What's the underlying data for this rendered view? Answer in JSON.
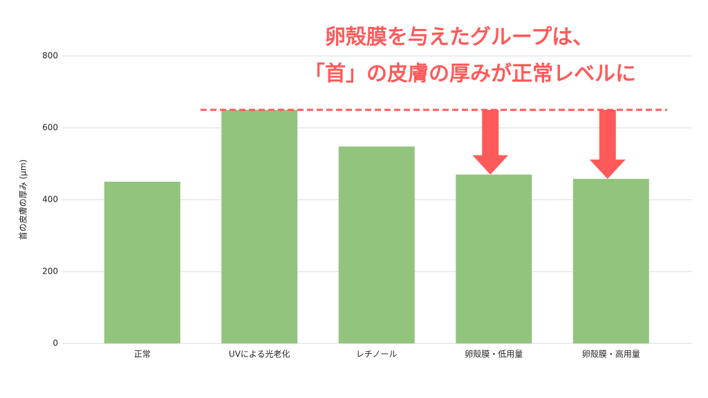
{
  "chart_data": {
    "type": "bar",
    "y_label": "首の皮膚の厚み (μm)",
    "categories": [
      "正常",
      "UVによる光老化",
      "レチノール",
      "卵殻膜・低用量",
      "卵殻膜・高用量"
    ],
    "values": [
      450,
      650,
      548,
      470,
      458
    ],
    "color": "#93c47d",
    "ylim": [
      0,
      800
    ],
    "yticks": [
      0,
      200,
      400,
      600,
      800
    ],
    "grid": true,
    "annotations": [
      "卵殻膜を与えたグループは、",
      "「首」の皮膚の厚みが正常レベルに"
    ],
    "annotation_color": "#ff5a5a"
  }
}
